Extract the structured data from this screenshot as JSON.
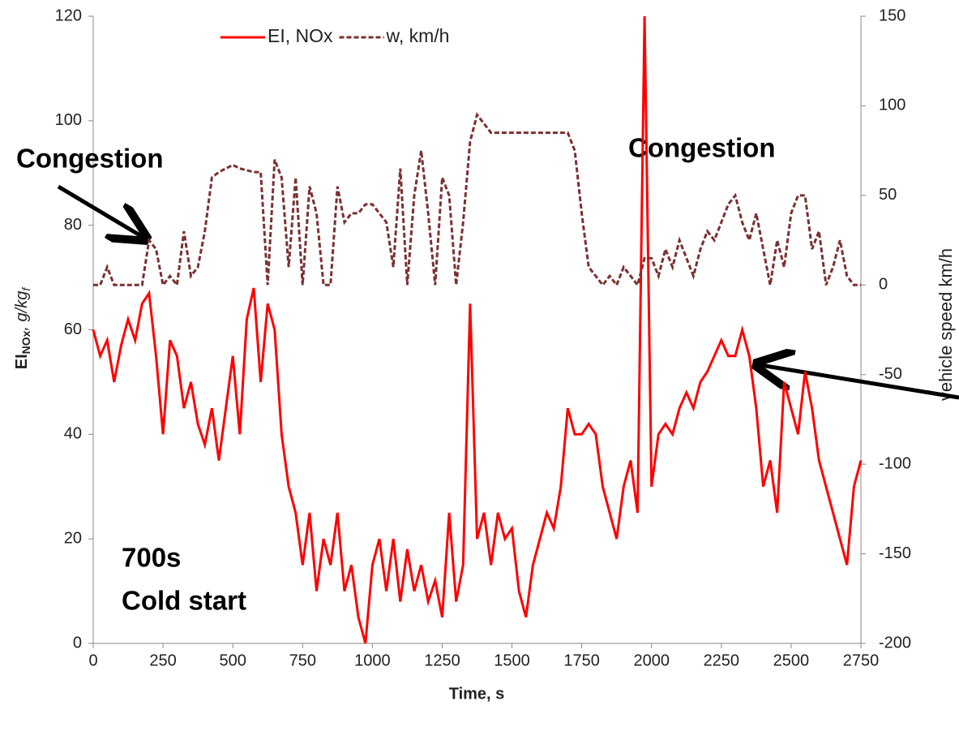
{
  "chart_data": {
    "type": "line",
    "ylabel": [
      "EI",
      "NOx",
      ", g/kg",
      "f"
    ],
    "y2label": "vehicle speed  km/h",
    "xlabel": "Time, s",
    "annotations": [
      "Congestion",
      "Congestion",
      "700s",
      "Cold start"
    ],
    "x": [
      0,
      25,
      50,
      75,
      100,
      125,
      150,
      175,
      200,
      225,
      250,
      275,
      300,
      325,
      350,
      375,
      400,
      425,
      450,
      475,
      500,
      525,
      550,
      575,
      600,
      625,
      650,
      675,
      700,
      725,
      750,
      775,
      800,
      825,
      850,
      875,
      900,
      925,
      950,
      975,
      1000,
      1025,
      1050,
      1075,
      1100,
      1125,
      1150,
      1175,
      1200,
      1225,
      1250,
      1275,
      1300,
      1325,
      1350,
      1375,
      1400,
      1425,
      1450,
      1475,
      1500,
      1525,
      1550,
      1575,
      1600,
      1625,
      1650,
      1675,
      1700,
      1725,
      1750,
      1775,
      1800,
      1825,
      1850,
      1875,
      1900,
      1925,
      1950,
      1975,
      2000,
      2025,
      2050,
      2075,
      2100,
      2125,
      2150,
      2175,
      2200,
      2225,
      2250,
      2275,
      2300,
      2325,
      2350,
      2375,
      2400,
      2425,
      2450,
      2475,
      2500,
      2525,
      2550,
      2575,
      2600,
      2625,
      2650,
      2675,
      2700,
      2725,
      2750
    ],
    "series": [
      {
        "name": "EI, NOx",
        "color": "#ff0000",
        "dash": false,
        "values": [
          60,
          55,
          58,
          50,
          57,
          62,
          58,
          65,
          67,
          55,
          40,
          58,
          55,
          45,
          50,
          42,
          38,
          45,
          35,
          45,
          55,
          40,
          62,
          68,
          50,
          65,
          60,
          40,
          30,
          25,
          15,
          25,
          10,
          20,
          15,
          25,
          10,
          15,
          5,
          0,
          15,
          20,
          10,
          20,
          8,
          18,
          10,
          15,
          8,
          12,
          5,
          25,
          8,
          15,
          65,
          20,
          25,
          15,
          25,
          20,
          22,
          10,
          5,
          15,
          20,
          25,
          22,
          30,
          45,
          40,
          40,
          42,
          40,
          30,
          25,
          20,
          30,
          35,
          25,
          120,
          30,
          40,
          42,
          40,
          45,
          48,
          45,
          50,
          52,
          55,
          58,
          55,
          55,
          60,
          55,
          45,
          30,
          35,
          25,
          50,
          45,
          40,
          52,
          45,
          35,
          30,
          25,
          20,
          15,
          30,
          35
        ]
      },
      {
        "name": "w, km/h",
        "color": "#7b3030",
        "dash": true,
        "axis": "y2",
        "values": [
          0,
          0,
          10,
          0,
          0,
          0,
          0,
          0,
          25,
          20,
          0,
          5,
          0,
          30,
          5,
          10,
          30,
          60,
          63,
          65,
          67,
          65,
          64,
          63,
          63,
          0,
          70,
          60,
          10,
          60,
          0,
          55,
          40,
          0,
          0,
          55,
          35,
          40,
          40,
          45,
          45,
          40,
          35,
          10,
          65,
          0,
          50,
          75,
          40,
          0,
          60,
          50,
          0,
          35,
          80,
          95,
          90,
          85,
          85,
          85,
          85,
          85,
          85,
          85,
          85,
          85,
          85,
          85,
          85,
          75,
          40,
          10,
          5,
          0,
          5,
          0,
          10,
          5,
          0,
          15,
          15,
          5,
          20,
          10,
          25,
          15,
          5,
          20,
          30,
          25,
          35,
          45,
          50,
          35,
          25,
          40,
          20,
          0,
          25,
          10,
          40,
          50,
          50,
          20,
          30,
          0,
          10,
          25,
          5,
          0,
          0
        ]
      }
    ],
    "xlim": [
      0,
      2750
    ],
    "xticks": [
      0,
      250,
      500,
      750,
      1000,
      1250,
      1500,
      1750,
      2000,
      2250,
      2500,
      2750
    ],
    "ylim": [
      0,
      120
    ],
    "yticks": [
      0,
      20,
      40,
      60,
      80,
      100,
      120
    ],
    "y2lim": [
      -200,
      150
    ],
    "y2ticks": [
      -200,
      -150,
      -100,
      -50,
      0,
      50,
      100,
      150
    ],
    "legend": "top"
  }
}
